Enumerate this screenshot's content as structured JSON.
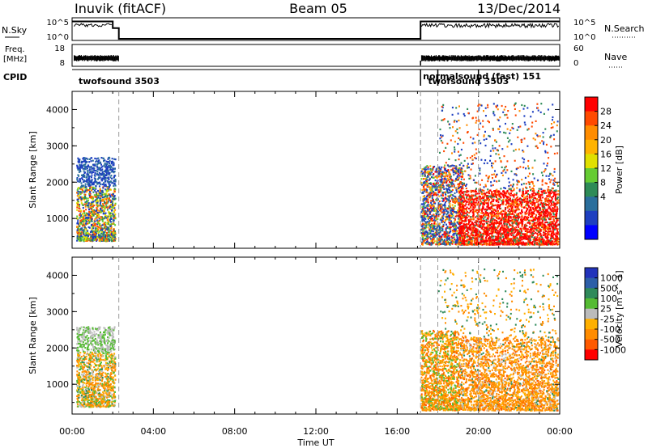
{
  "header": {
    "station": "Inuvik (fitACF)",
    "beam": "Beam 05",
    "date": "13/Dec/2014"
  },
  "strips": {
    "nsky": {
      "left_label": "N.Sky",
      "left_ticks": [
        "10^5",
        "10^0"
      ],
      "right_label": "N.Search",
      "right_ticks": [
        "10^5",
        "10^0"
      ]
    },
    "freq": {
      "left_label_line1": "Freq.",
      "left_label_line2": "[MHz]",
      "left_ticks": [
        "18",
        "8"
      ],
      "right_label": "Nave",
      "right_ticks": [
        "60",
        "0"
      ]
    },
    "cpid": {
      "label": "CPID",
      "labels": [
        {
          "text": "twofsound 3503",
          "t": 0.2,
          "row": 1
        },
        {
          "text": "normalsound (fast) 151",
          "t": 17.15,
          "row": 0
        },
        {
          "text": "twofsound 3503",
          "t": 17.4,
          "row": 1
        }
      ],
      "markers": [
        17.15,
        18.0,
        20.0
      ]
    }
  },
  "x_axis": {
    "label": "Time UT",
    "ticks": [
      "00:00",
      "04:00",
      "08:00",
      "12:00",
      "16:00",
      "20:00",
      "00:00"
    ]
  },
  "colorbars": {
    "power": {
      "label": "Power [dB]",
      "ticks": [
        "28",
        "24",
        "20",
        "16",
        "12",
        "8",
        "4"
      ],
      "colors": [
        "#ff0000",
        "#ff4a00",
        "#ff8c00",
        "#ffb300",
        "#e0e000",
        "#66cc33",
        "#2e8b57",
        "#2a6e9c",
        "#1e3fc0",
        "#0000ff"
      ]
    },
    "velocity": {
      "label": "Velocity [m s^-1]",
      "ticks": [
        "1000",
        "500",
        "100",
        "25",
        "-25",
        "-100",
        "-500",
        "-1000"
      ],
      "colors": [
        "#2233bb",
        "#2d5fa8",
        "#2f8a5a",
        "#55bb33",
        "#bbbbbb",
        "#ffb000",
        "#ff8c00",
        "#ff5a00",
        "#ff0000"
      ]
    }
  },
  "chart_data": [
    {
      "type": "line",
      "title": "N.Sky / N.Search",
      "xlabel": "Time UT",
      "xlim": [
        0,
        24
      ],
      "series": [
        {
          "name": "N.Sky",
          "x": [
            0,
            2.0,
            2.0,
            2.3,
            2.3,
            17.15,
            17.15,
            24
          ],
          "values": [
            30000,
            30000,
            600,
            600,
            1,
            1,
            30000,
            30000
          ]
        },
        {
          "name": "N.Search",
          "x": [
            0,
            2.0,
            17.15,
            24
          ],
          "values": [
            20000,
            20000,
            20000,
            20000
          ]
        }
      ]
    },
    {
      "type": "line",
      "title": "Freq. [MHz] / Nave",
      "xlabel": "Time UT",
      "xlim": [
        0,
        24
      ],
      "series": [
        {
          "name": "Freq.",
          "x": [
            0,
            2.3,
            2.3,
            17.15,
            17.15,
            24
          ],
          "values": [
            10.5,
            10.5,
            8,
            8,
            10.5,
            10.5
          ]
        },
        {
          "name": "Nave",
          "x": [
            0,
            2.3,
            17.15,
            24
          ],
          "values": [
            26,
            26,
            26,
            26
          ]
        }
      ]
    },
    {
      "type": "heatmap",
      "title": "Power [dB]",
      "xlabel": "Time UT",
      "ylabel": "Slant Range [km]",
      "xlim": [
        0,
        24
      ],
      "ylim": [
        180,
        4500
      ],
      "y_ticks": [
        1000,
        2000,
        3000,
        4000
      ],
      "z_range": [
        0,
        30
      ],
      "regions": [
        {
          "t0": 0.2,
          "t1": 2.1,
          "r0": 400,
          "r1": 2700,
          "dominant_db": 9
        },
        {
          "t0": 17.15,
          "t1": 19.0,
          "r0": 300,
          "r1": 2500,
          "dominant_db": 8
        },
        {
          "t0": 19.0,
          "t1": 23.9,
          "r0": 300,
          "r1": 1800,
          "dominant_db": 28
        }
      ]
    },
    {
      "type": "heatmap",
      "title": "Velocity [m s^-1]",
      "xlabel": "Time UT",
      "ylabel": "Slant Range [km]",
      "xlim": [
        0,
        24
      ],
      "ylim": [
        180,
        4500
      ],
      "y_ticks": [
        1000,
        2000,
        3000,
        4000
      ],
      "z_range": [
        -1000,
        1000
      ],
      "regions": [
        {
          "t0": 0.2,
          "t1": 2.1,
          "r0": 400,
          "r1": 2600,
          "dominant_velocity": -100
        },
        {
          "t0": 17.15,
          "t1": 19.0,
          "r0": 300,
          "r1": 2500,
          "dominant_velocity": -500
        },
        {
          "t0": 19.0,
          "t1": 23.9,
          "r0": 300,
          "r1": 2300,
          "dominant_velocity": -500
        }
      ]
    }
  ]
}
